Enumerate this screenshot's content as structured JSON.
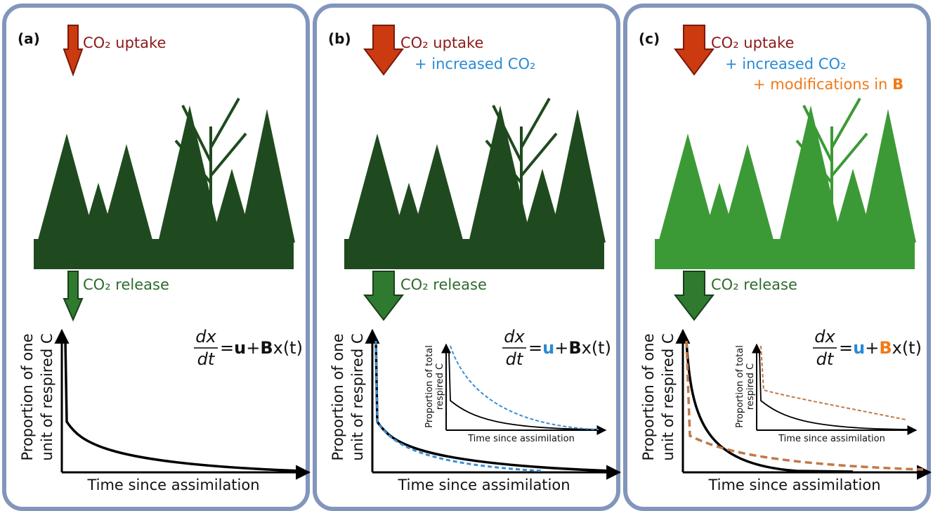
{
  "panels": [
    {
      "label": "(a)",
      "uptake": "CO₂ uptake",
      "uptake_extra": [],
      "release": "CO₂ release",
      "y_label": [
        "Proportion of one",
        "unit of respired C"
      ],
      "x_label": "Time since assimilation",
      "equation": {
        "numerator": "dx",
        "denominator": "dt",
        "equals": "=",
        "u": "u",
        "plus": "+",
        "B": "B",
        "rest": "x(t)"
      }
    },
    {
      "label": "(b)",
      "uptake": "CO₂ uptake",
      "uptake_extra": [
        {
          "text": "+ increased CO₂"
        }
      ],
      "release": "CO₂ release",
      "y_label": [
        "Proportion of one",
        "unit of respired C"
      ],
      "x_label": "Time since assimilation",
      "equation": {
        "numerator": "dx",
        "denominator": "dt",
        "equals": "=",
        "u": "u",
        "plus": "+",
        "B": "B",
        "rest": "x(t)"
      },
      "inset": {
        "y_label": [
          "Proportion of total",
          "respired C"
        ],
        "x_label": "Time since assimilation"
      }
    },
    {
      "label": "(c)",
      "uptake": "CO₂ uptake",
      "uptake_extra": [
        {
          "text": "+ increased CO₂"
        },
        {
          "text": "+ modifications in",
          "bold": "B"
        }
      ],
      "release": "CO₂ release",
      "y_label": [
        "Proportion of one",
        "unit of respired C"
      ],
      "x_label": "Time since assimilation",
      "equation": {
        "numerator": "dx",
        "denominator": "dt",
        "equals": "=",
        "u": "u",
        "plus": "+",
        "B": "B",
        "rest": "x(t)"
      },
      "inset": {
        "y_label": [
          "Proportion of total",
          "respired C"
        ],
        "x_label": "Time since assimilation"
      }
    }
  ]
}
